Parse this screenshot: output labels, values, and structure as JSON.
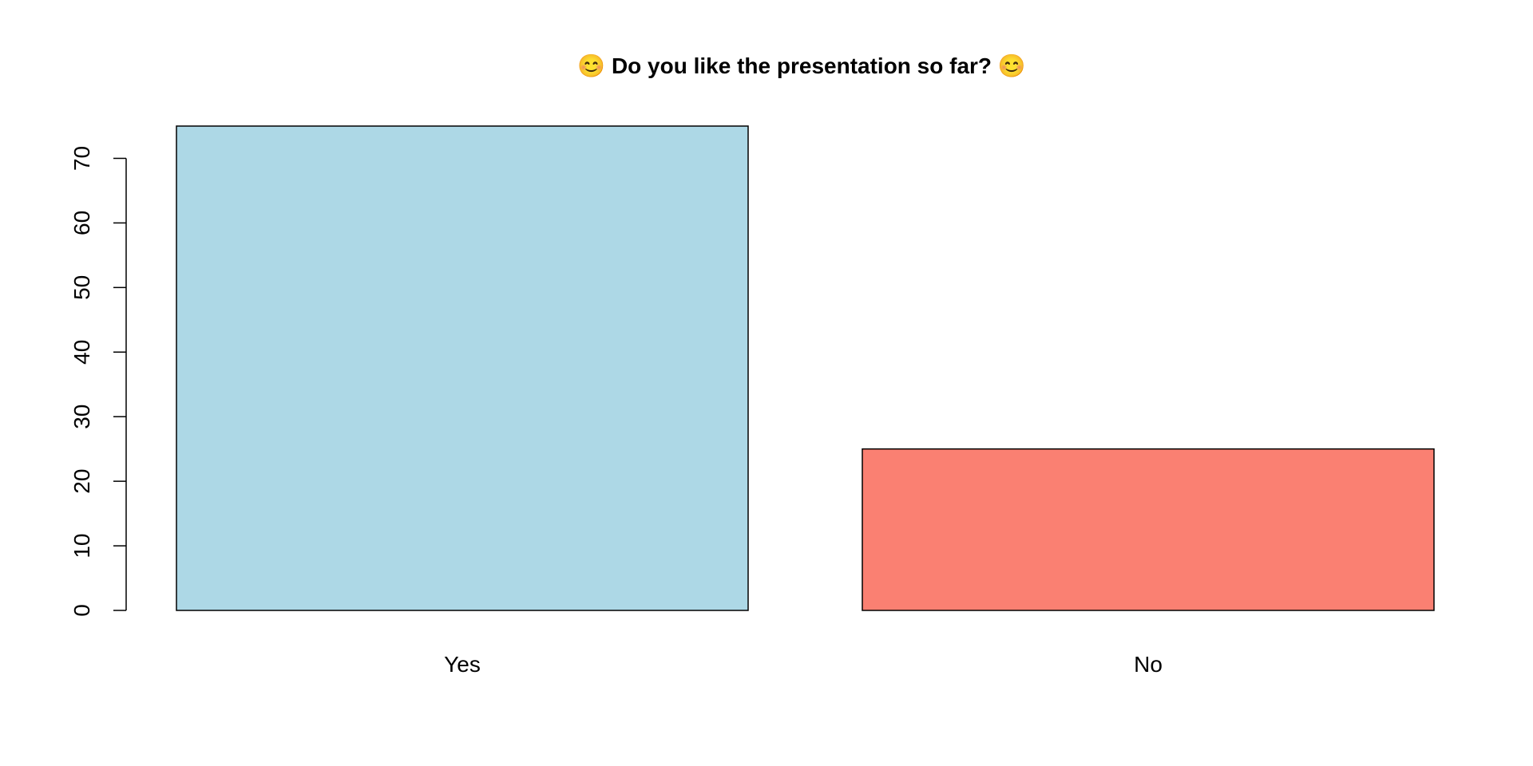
{
  "chart_data": {
    "type": "bar",
    "title": "😊 Do you like the presentation so far? 😊",
    "categories": [
      "Yes",
      "No"
    ],
    "values": [
      75,
      25
    ],
    "colors": [
      "#add8e6",
      "#fa8072"
    ],
    "ylim": [
      0,
      75
    ],
    "yticks": [
      0,
      10,
      20,
      30,
      40,
      50,
      60,
      70
    ],
    "xlabel": "",
    "ylabel": "",
    "grid": false,
    "legend": "none"
  }
}
